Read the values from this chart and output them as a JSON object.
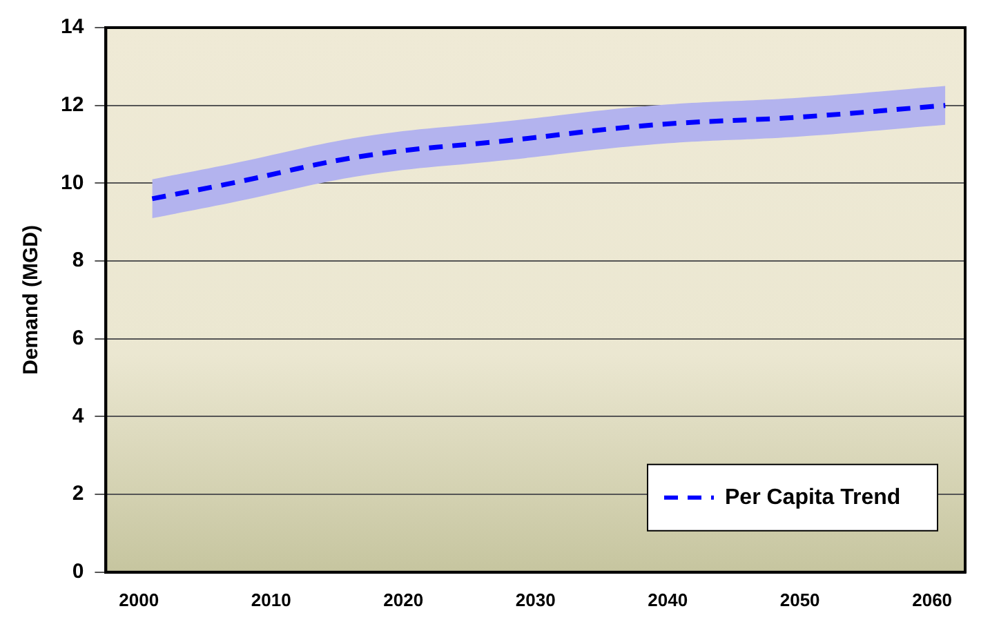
{
  "chart_data": {
    "type": "line",
    "ylabel": "Demand (MGD)",
    "x": [
      2001,
      2007,
      2017,
      2028,
      2039,
      2050,
      2061
    ],
    "series": [
      {
        "name": "Per Capita Trend",
        "color": "#0000ff",
        "values": [
          9.6,
          10.0,
          10.7,
          11.1,
          11.5,
          11.7,
          12.0
        ],
        "lower": [
          9.1,
          9.5,
          10.2,
          10.6,
          11.0,
          11.2,
          11.5
        ],
        "upper": [
          10.1,
          10.5,
          11.2,
          11.6,
          12.0,
          12.2,
          12.5
        ],
        "line_style": "dashed"
      }
    ],
    "xlim": [
      1997.5,
      2062.5
    ],
    "xticks": [
      2000,
      2010,
      2020,
      2030,
      2040,
      2050,
      2060
    ],
    "ylim": [
      0,
      14
    ],
    "yticks": [
      0,
      2,
      4,
      6,
      8,
      10,
      12,
      14
    ],
    "grid": "y",
    "legend": "bottom right",
    "marker": "none"
  }
}
